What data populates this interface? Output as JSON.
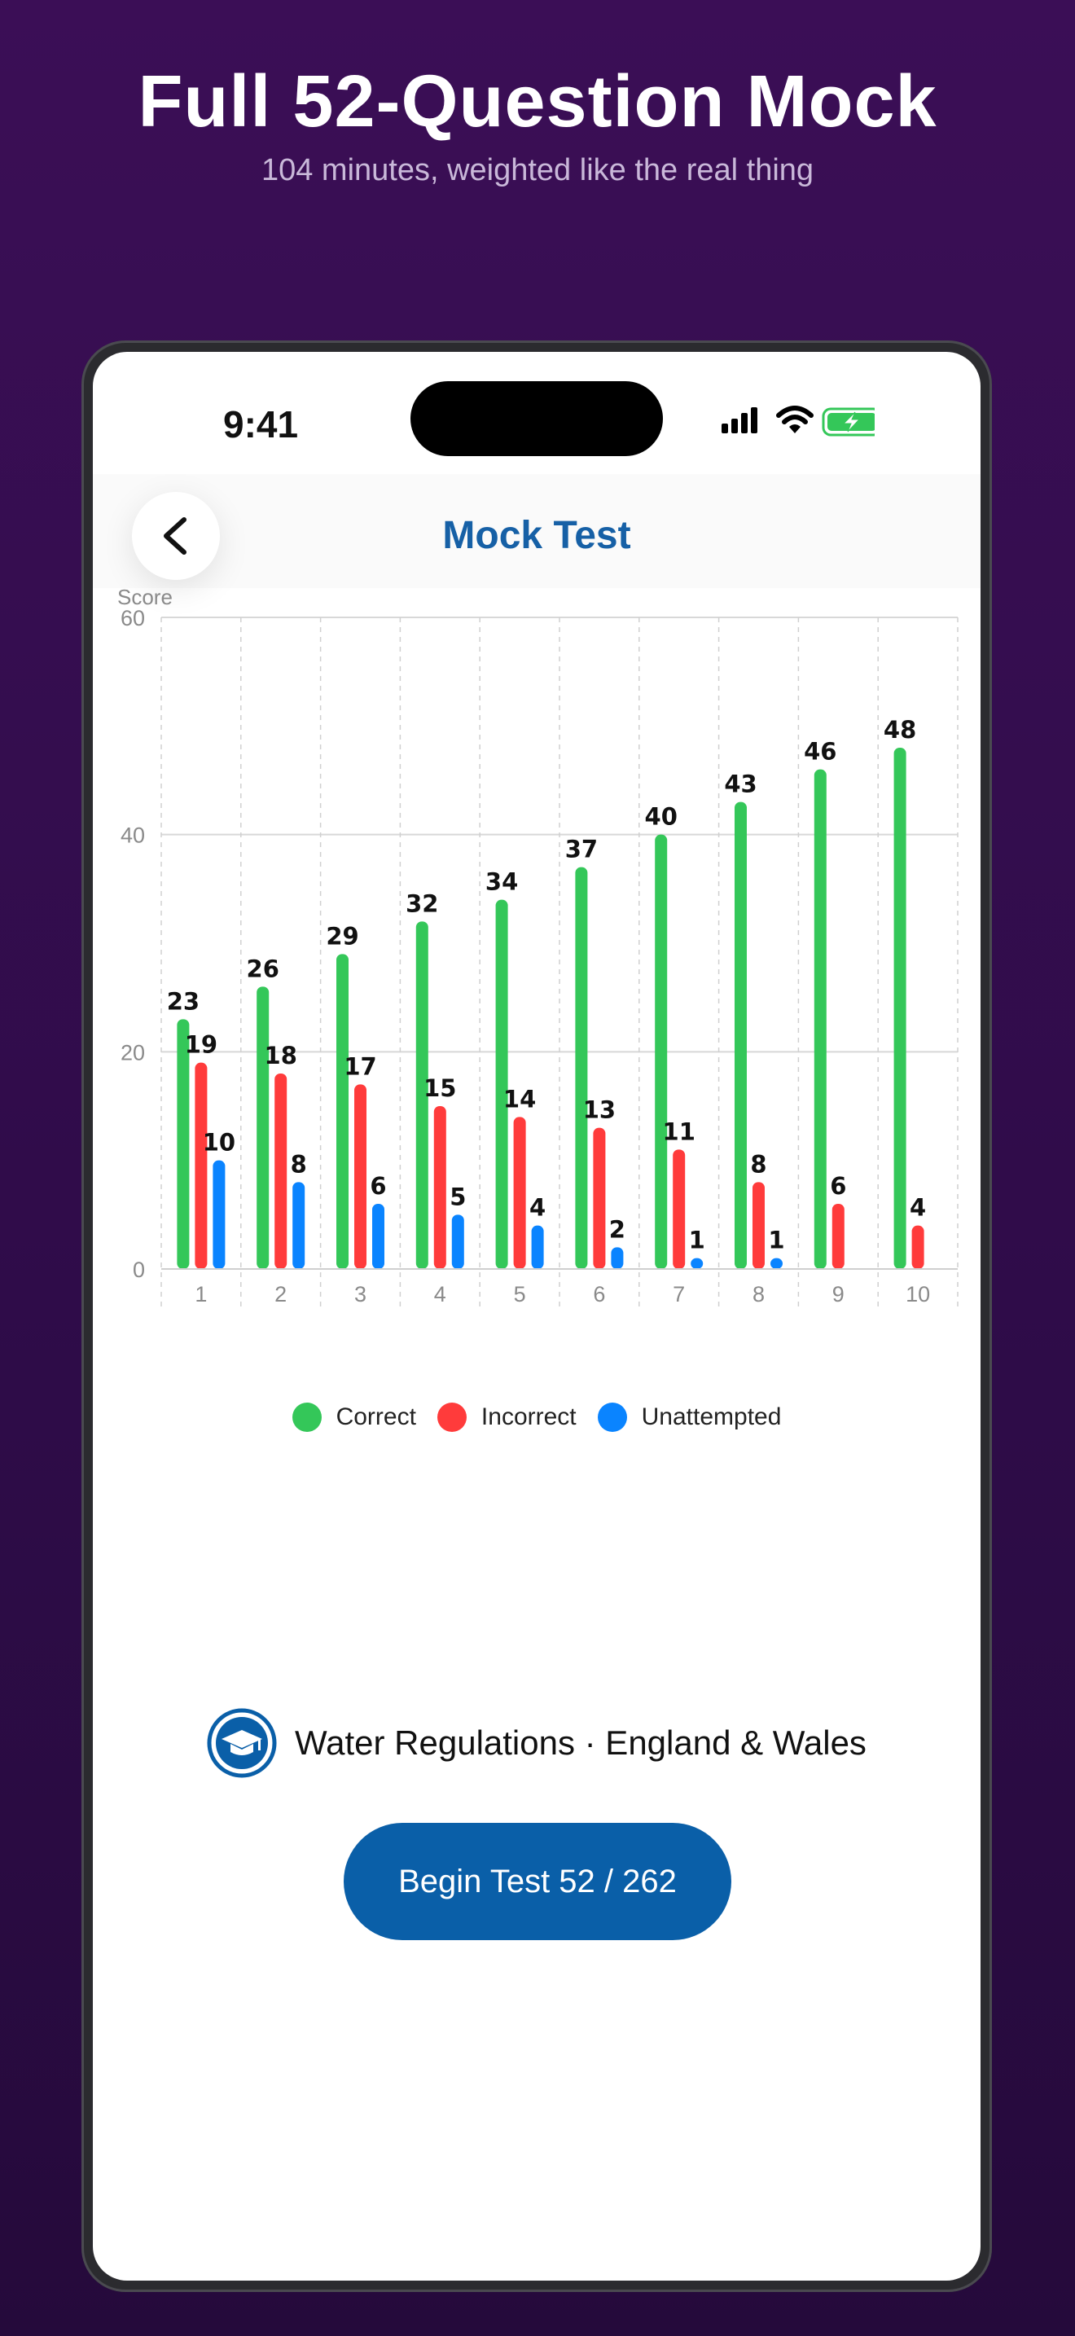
{
  "promo": {
    "headline": "Full 52-Question Mock",
    "subline": "104 minutes, weighted like the real thing"
  },
  "status_bar": {
    "time": "9:41",
    "icons": [
      "cellular-signal-icon",
      "wifi-icon",
      "battery-charging-icon"
    ]
  },
  "nav": {
    "title": "Mock Test",
    "back_icon": "chevron-left-icon"
  },
  "chart_data": {
    "type": "bar",
    "ylabel": "Score",
    "xlabel": "",
    "ylim": [
      0,
      60
    ],
    "yticks": [
      0,
      20,
      40,
      60
    ],
    "categories": [
      "1",
      "2",
      "3",
      "4",
      "5",
      "6",
      "7",
      "8",
      "9",
      "10"
    ],
    "series": [
      {
        "name": "Correct",
        "color": "#34c759",
        "values": [
          23,
          26,
          29,
          32,
          34,
          37,
          40,
          43,
          46,
          48
        ]
      },
      {
        "name": "Incorrect",
        "color": "#ff3b3b",
        "values": [
          19,
          18,
          17,
          15,
          14,
          13,
          11,
          8,
          6,
          4
        ]
      },
      {
        "name": "Unattempted",
        "color": "#0a84ff",
        "values": [
          10,
          8,
          6,
          5,
          4,
          2,
          1,
          1,
          null,
          null
        ]
      }
    ],
    "grid": true,
    "legend_position": "bottom-center"
  },
  "legend": {
    "correct": "Correct",
    "incorrect": "Incorrect",
    "unattempted": "Unattempted"
  },
  "brand": {
    "text": "Water Regulations · England & Wales",
    "icon": "graduation-cap-icon"
  },
  "actions": {
    "begin_label": "Begin Test 52 / 262"
  },
  "colors": {
    "accent": "#0a5fa8",
    "title": "#1660a6",
    "correct": "#34c759",
    "incorrect": "#ff3b3b",
    "unattempted": "#0a84ff"
  }
}
